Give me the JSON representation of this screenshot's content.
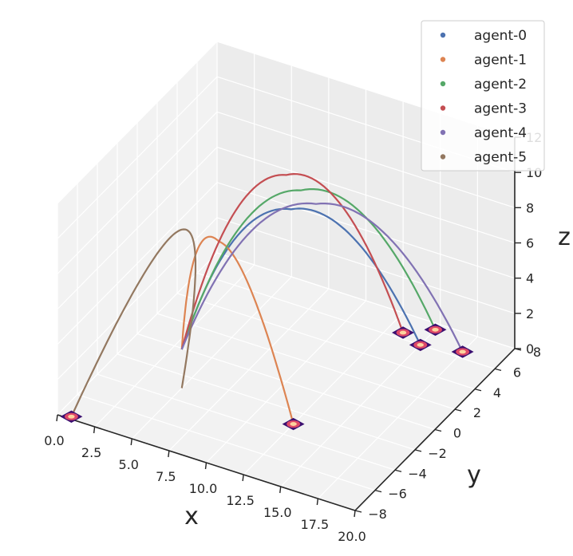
{
  "chart_data": {
    "type": "line",
    "projection": "3d",
    "xlabel": "x",
    "ylabel": "y",
    "zlabel": "z",
    "xlim": [
      0,
      20
    ],
    "ylim": [
      -8,
      8
    ],
    "zlim": [
      0,
      12
    ],
    "x_ticks": [
      "0.0",
      "2.5",
      "5.0",
      "7.5",
      "10.0",
      "12.5",
      "15.0",
      "17.5",
      "20.0"
    ],
    "y_ticks": [
      "−8",
      "−6",
      "−4",
      "−2",
      "0",
      "2",
      "4",
      "6",
      "8"
    ],
    "z_ticks": [
      "0",
      "2",
      "4",
      "6",
      "8",
      "10",
      "12"
    ],
    "grid": true,
    "legend_position": "top-right",
    "markers": "surface footprint at each trajectory end",
    "series": [
      {
        "name": "agent-0",
        "color": "#4c72b0",
        "start": [
          5.0,
          -3.0,
          0.0
        ],
        "peak": [
          10.0,
          0.5,
          9.5
        ],
        "end": [
          15.0,
          6.0,
          0.0
        ]
      },
      {
        "name": "agent-1",
        "color": "#dd8452",
        "start": [
          5.0,
          -3.0,
          0.0
        ],
        "peak": [
          7.5,
          -3.0,
          9.0
        ],
        "end": [
          12.5,
          -3.0,
          0.0
        ]
      },
      {
        "name": "agent-2",
        "color": "#55a868",
        "start": [
          5.0,
          -3.0,
          0.0
        ],
        "peak": [
          10.0,
          1.5,
          10.0
        ],
        "end": [
          15.0,
          7.5,
          0.0
        ]
      },
      {
        "name": "agent-3",
        "color": "#c44e52",
        "start": [
          5.0,
          -3.0,
          0.0
        ],
        "peak": [
          9.0,
          1.5,
          10.6
        ],
        "end": [
          13.5,
          6.5,
          0.0
        ]
      },
      {
        "name": "agent-4",
        "color": "#8172b3",
        "start": [
          5.0,
          -3.0,
          0.0
        ],
        "peak": [
          11.0,
          1.5,
          9.5
        ],
        "end": [
          17.5,
          6.5,
          0.0
        ]
      },
      {
        "name": "agent-5",
        "color": "#937860",
        "start": [
          5.0,
          -3.0,
          0.0
        ],
        "peak": [
          5.0,
          -3.0,
          9.0
        ],
        "end": [
          0.8,
          -7.8,
          0.0
        ]
      }
    ]
  }
}
